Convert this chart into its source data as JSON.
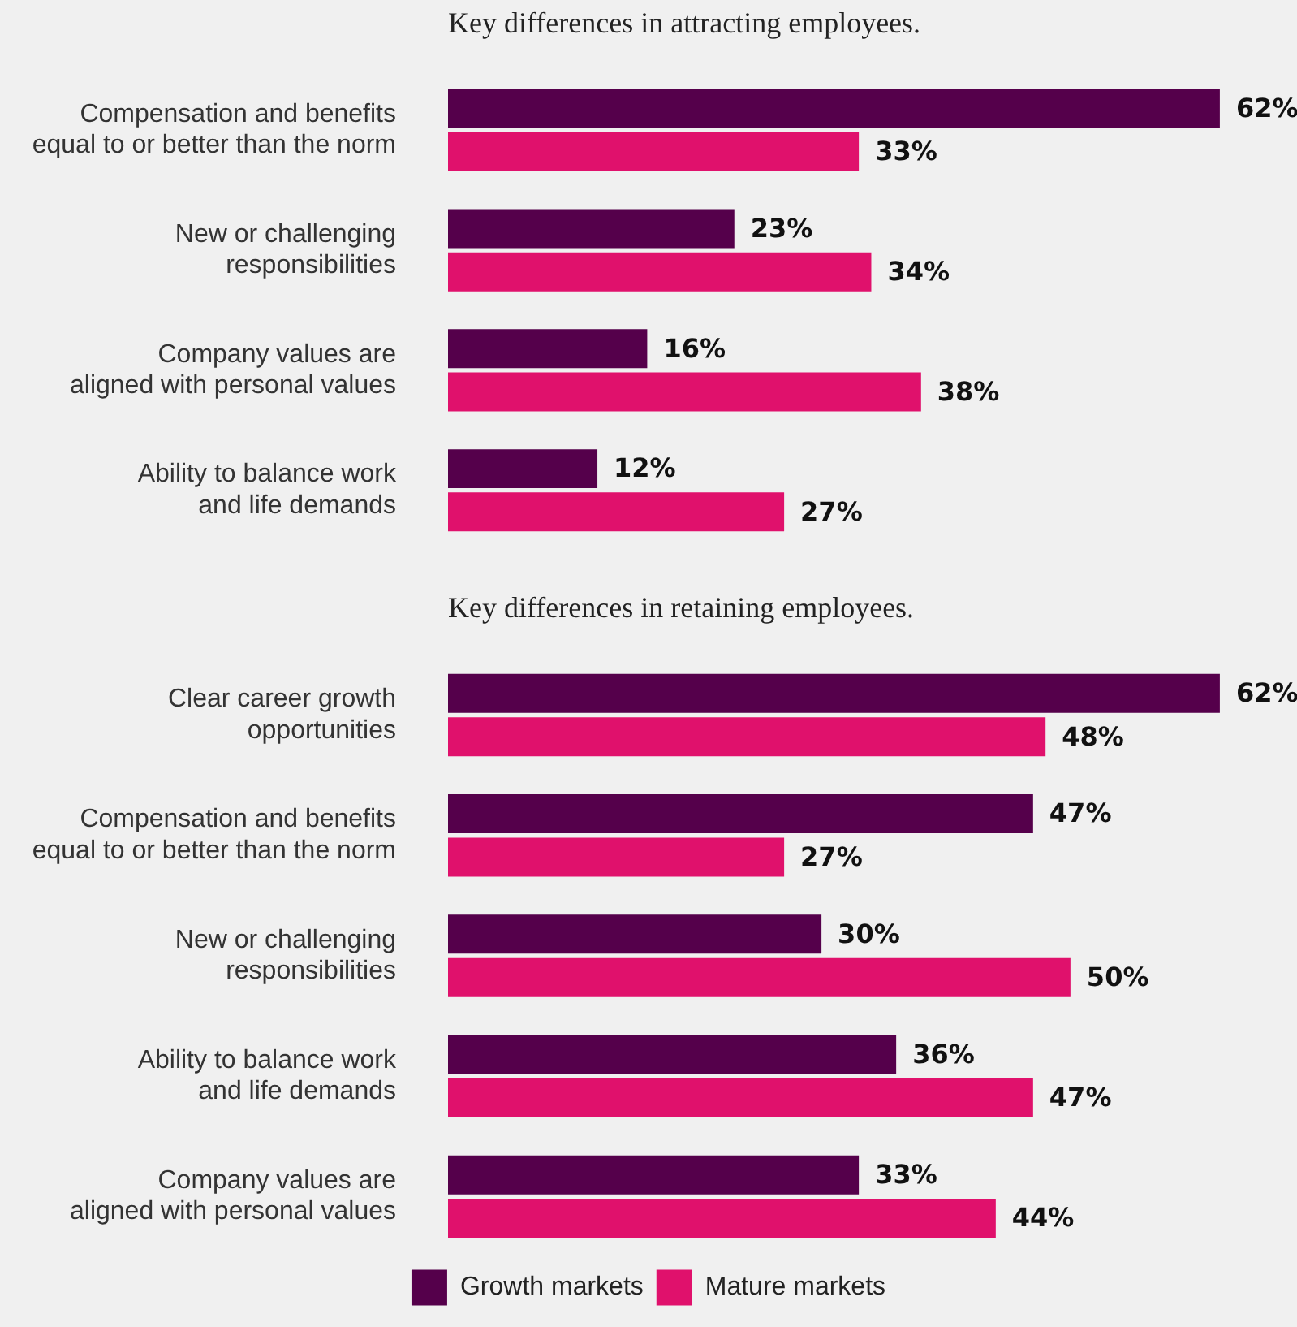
{
  "chart_data": [
    {
      "type": "bar",
      "orientation": "horizontal",
      "title": "Key differences in attracting employees.",
      "categories": [
        "Compensation and benefits equal to or better than the norm",
        "New or challenging responsibilities",
        "Company values are aligned with personal values",
        "Ability to balance work and life demands"
      ],
      "series": [
        {
          "color": "#55004b",
          "values": [
            62,
            23,
            16,
            12
          ],
          "value_labels": [
            "62%",
            "23%",
            "16%",
            "12%"
          ]
        },
        {
          "color": "#e0116c",
          "values": [
            33,
            34,
            38,
            27
          ],
          "value_labels": [
            "33%",
            "34%",
            "38%",
            "27%"
          ]
        }
      ],
      "grid": false,
      "legend": false,
      "tick_labels": "y"
    },
    {
      "type": "bar",
      "orientation": "horizontal",
      "title": "Key differences in retaining employees.",
      "categories": [
        "Clear career growth opportunities",
        "Compensation and benefits equal to or better than the norm",
        "New or challenging responsibilities",
        "Ability to balance work and life demands",
        "Company values are aligned with personal values"
      ],
      "series": [
        {
          "name": "Growth markets",
          "color": "#55004b",
          "values": [
            62,
            47,
            30,
            36,
            33
          ],
          "value_labels": [
            "62%",
            "47%",
            "30%",
            "36%",
            "33%"
          ]
        },
        {
          "name": "Mature markets",
          "color": "#e0116c",
          "values": [
            48,
            27,
            50,
            47,
            44
          ],
          "value_labels": [
            "48%",
            "27%",
            "50%",
            "47%",
            "44%"
          ]
        }
      ],
      "grid": false,
      "legend": "bottom",
      "tick_labels": "y"
    }
  ]
}
